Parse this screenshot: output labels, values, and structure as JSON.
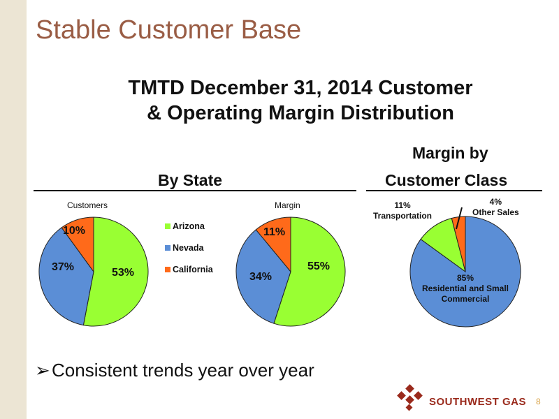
{
  "slide": {
    "title": "Stable Customer Base",
    "subtitle_line1": "TMTD December 31, 2014 Customer",
    "subtitle_line2": "& Operating Margin Distribution",
    "by_state_header": "By State",
    "margin_by_header_line1": "Margin by",
    "margin_by_header_line2": "Customer Class",
    "bullet_text": "Consistent trends year over year",
    "bullet_symbol": "➢",
    "logo_text": "SOUTHWEST GAS",
    "page_number": "8"
  },
  "legend": [
    {
      "name": "Arizona",
      "color": "#99ff33"
    },
    {
      "name": "Nevada",
      "color": "#5b8ed6"
    },
    {
      "name": "California",
      "color": "#ff6a1a"
    }
  ],
  "chart_data": [
    {
      "type": "pie",
      "title": "Customers",
      "categories": [
        "Arizona",
        "Nevada",
        "California"
      ],
      "values": [
        53,
        37,
        10
      ],
      "labels": [
        "53%",
        "37%",
        "10%"
      ],
      "colors": [
        "#99ff33",
        "#5b8ed6",
        "#ff6a1a"
      ],
      "legend": "right"
    },
    {
      "type": "pie",
      "title": "Margin",
      "categories": [
        "Arizona",
        "Nevada",
        "California"
      ],
      "values": [
        55,
        34,
        11
      ],
      "labels": [
        "55%",
        "34%",
        "11%"
      ],
      "colors": [
        "#99ff33",
        "#5b8ed6",
        "#ff6a1a"
      ]
    },
    {
      "type": "pie",
      "title": "",
      "categories": [
        "Residential and Small Commercial",
        "Transportation",
        "Other Sales"
      ],
      "values": [
        85,
        11,
        4
      ],
      "labels": [
        "85%",
        "11%",
        "4%"
      ],
      "colors": [
        "#5b8ed6",
        "#99ff33",
        "#ff6a1a"
      ]
    }
  ]
}
